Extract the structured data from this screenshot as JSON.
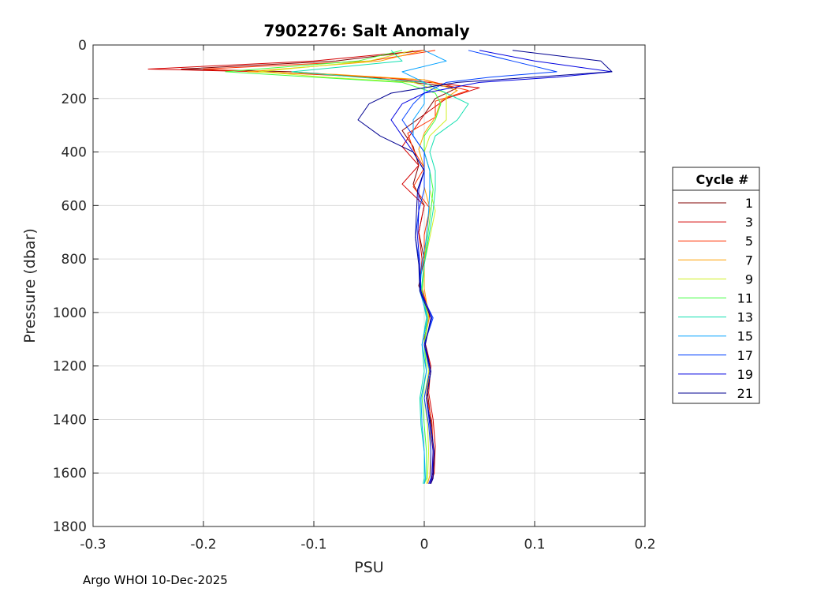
{
  "chart_data": {
    "type": "line",
    "title": "7902276: Salt Anomaly",
    "xlabel": "PSU",
    "ylabel": "Pressure (dbar)",
    "xlim": [
      -0.3,
      0.2
    ],
    "ylim": [
      0,
      1800
    ],
    "y_reversed": true,
    "grid": true,
    "xticks": [
      -0.3,
      -0.2,
      -0.1,
      0,
      0.1,
      0.2
    ],
    "xtick_labels": [
      "-0.3",
      "-0.2",
      "-0.1",
      "0",
      "0.1",
      "0.2"
    ],
    "yticks": [
      0,
      200,
      400,
      600,
      800,
      1000,
      1200,
      1400,
      1600,
      1800
    ],
    "ytick_labels": [
      "0",
      "200",
      "400",
      "600",
      "800",
      "1000",
      "1200",
      "1400",
      "1600",
      "1800"
    ],
    "legend": {
      "title": "Cycle #",
      "placement": "outside-right",
      "entries": [
        {
          "label": "1",
          "color": "#800000"
        },
        {
          "label": "3",
          "color": "#d40000"
        },
        {
          "label": "5",
          "color": "#ff3000"
        },
        {
          "label": "7",
          "color": "#ffa000"
        },
        {
          "label": "9",
          "color": "#d0f020"
        },
        {
          "label": "11",
          "color": "#40ff40"
        },
        {
          "label": "13",
          "color": "#10e0b0"
        },
        {
          "label": "15",
          "color": "#00a0ff"
        },
        {
          "label": "17",
          "color": "#0040ff"
        },
        {
          "label": "19",
          "color": "#0000e0"
        },
        {
          "label": "21",
          "color": "#000090"
        }
      ]
    },
    "series": [
      {
        "color": "#800000",
        "y": [
          20,
          60,
          90,
          100,
          120,
          160,
          200,
          260,
          320,
          380,
          450,
          520,
          600,
          700,
          800,
          900,
          1000,
          1100,
          1200,
          1300,
          1400,
          1500,
          1600,
          1640
        ],
        "x": [
          0.0,
          -0.08,
          -0.22,
          -0.12,
          -0.05,
          0.03,
          0.01,
          0.0,
          -0.02,
          -0.01,
          -0.005,
          -0.01,
          0.0,
          -0.005,
          0.0,
          -0.005,
          0.005,
          0.0,
          0.005,
          0.003,
          0.006,
          0.008,
          0.008,
          0.005
        ]
      },
      {
        "color": "#d40000",
        "y": [
          20,
          60,
          90,
          100,
          120,
          160,
          200,
          260,
          320,
          380,
          450,
          520,
          600,
          700,
          800,
          900,
          1000,
          1100,
          1200,
          1300,
          1400,
          1500,
          1600,
          1640
        ],
        "x": [
          0.0,
          -0.1,
          -0.25,
          -0.15,
          -0.04,
          0.05,
          0.02,
          0.0,
          -0.01,
          -0.02,
          -0.005,
          -0.02,
          0.0,
          -0.005,
          -0.002,
          -0.004,
          0.005,
          0.0,
          0.006,
          0.004,
          0.008,
          0.01,
          0.009,
          0.006
        ]
      },
      {
        "color": "#ff3000",
        "y": [
          20,
          60,
          90,
          110,
          130,
          170,
          210,
          270,
          330,
          390,
          460,
          530,
          610,
          710,
          810,
          910,
          1010,
          1110,
          1210,
          1310,
          1410,
          1510,
          1610,
          1640
        ],
        "x": [
          0.01,
          -0.05,
          -0.2,
          -0.1,
          0.0,
          0.04,
          0.01,
          0.01,
          -0.015,
          -0.01,
          0.0,
          -0.01,
          0.005,
          0.0,
          0.0,
          -0.002,
          0.005,
          0.0,
          0.005,
          0.002,
          0.007,
          0.008,
          0.007,
          0.004
        ]
      },
      {
        "color": "#ffa000",
        "y": [
          20,
          60,
          100,
          110,
          130,
          170,
          210,
          270,
          330,
          390,
          460,
          530,
          610,
          710,
          810,
          910,
          1010,
          1110,
          1210,
          1310,
          1410,
          1510,
          1610,
          1640
        ],
        "x": [
          0.0,
          -0.04,
          -0.16,
          -0.08,
          0.0,
          0.03,
          0.015,
          0.01,
          0.0,
          -0.005,
          0.0,
          0.0,
          0.005,
          0.002,
          0.0,
          0.0,
          0.004,
          0.0,
          0.005,
          0.002,
          0.005,
          0.006,
          0.005,
          0.003
        ]
      },
      {
        "color": "#d0f020",
        "y": [
          20,
          60,
          100,
          120,
          140,
          180,
          220,
          280,
          340,
          400,
          470,
          540,
          620,
          720,
          820,
          920,
          1020,
          1120,
          1220,
          1320,
          1420,
          1520,
          1620,
          1640
        ],
        "x": [
          -0.01,
          -0.05,
          -0.15,
          -0.09,
          -0.01,
          0.02,
          0.02,
          0.02,
          0.005,
          0.0,
          0.005,
          0.005,
          0.01,
          0.005,
          0.0,
          -0.002,
          0.004,
          0.0,
          0.004,
          0.0,
          0.003,
          0.004,
          0.003,
          0.002
        ]
      },
      {
        "color": "#40ff40",
        "y": [
          20,
          60,
          100,
          120,
          140,
          180,
          220,
          280,
          340,
          400,
          470,
          540,
          620,
          720,
          820,
          920,
          1020,
          1120,
          1220,
          1320,
          1420,
          1520,
          1620,
          1640
        ],
        "x": [
          -0.02,
          -0.06,
          -0.18,
          -0.1,
          -0.02,
          0.01,
          0.015,
          0.01,
          0.0,
          0.0,
          0.005,
          0.008,
          0.006,
          0.003,
          0.0,
          -0.002,
          0.003,
          0.0,
          0.002,
          -0.002,
          0.0,
          0.002,
          0.002,
          0.0
        ]
      },
      {
        "color": "#10e0b0",
        "y": [
          20,
          60,
          100,
          120,
          140,
          180,
          220,
          280,
          340,
          400,
          470,
          540,
          620,
          720,
          820,
          920,
          1020,
          1120,
          1220,
          1320,
          1420,
          1520,
          1620,
          1640
        ],
        "x": [
          -0.03,
          -0.02,
          -0.12,
          -0.06,
          0.0,
          0.02,
          0.04,
          0.03,
          0.01,
          0.005,
          0.01,
          0.01,
          0.008,
          0.004,
          0.0,
          -0.003,
          0.002,
          -0.002,
          0.0,
          -0.004,
          -0.003,
          0.0,
          0.0,
          -0.001
        ]
      },
      {
        "color": "#00a0ff",
        "y": [
          20,
          60,
          100,
          120,
          140,
          180,
          220,
          280,
          340,
          400,
          470,
          540,
          620,
          720,
          820,
          920,
          1020,
          1120,
          1220,
          1320,
          1420,
          1520,
          1620,
          1640
        ],
        "x": [
          0.0,
          0.02,
          -0.02,
          -0.01,
          0.0,
          0.0,
          0.0,
          -0.01,
          -0.01,
          0.0,
          0.005,
          0.005,
          0.004,
          0.002,
          -0.002,
          -0.004,
          0.003,
          -0.002,
          0.002,
          -0.003,
          -0.002,
          0.0,
          0.001,
          0.0
        ]
      },
      {
        "color": "#0040ff",
        "y": [
          20,
          60,
          100,
          120,
          140,
          180,
          220,
          280,
          340,
          400,
          470,
          540,
          620,
          720,
          820,
          920,
          1020,
          1120,
          1220,
          1320,
          1420,
          1520,
          1620,
          1640
        ],
        "x": [
          0.04,
          0.08,
          0.12,
          0.06,
          0.02,
          0.0,
          -0.01,
          -0.02,
          -0.01,
          0.0,
          0.0,
          0.0,
          -0.005,
          -0.008,
          -0.004,
          -0.004,
          0.008,
          0.0,
          0.005,
          0.0,
          0.004,
          0.006,
          0.006,
          0.004
        ]
      },
      {
        "color": "#0000e0",
        "y": [
          20,
          60,
          100,
          120,
          140,
          180,
          220,
          280,
          340,
          400,
          470,
          540,
          620,
          720,
          820,
          920,
          1020,
          1120,
          1220,
          1320,
          1420,
          1520,
          1620,
          1640
        ],
        "x": [
          0.05,
          0.1,
          0.17,
          0.12,
          0.05,
          0.0,
          -0.02,
          -0.03,
          -0.02,
          -0.01,
          0.0,
          -0.005,
          -0.005,
          -0.006,
          -0.004,
          -0.003,
          0.007,
          0.0,
          0.006,
          0.002,
          0.005,
          0.008,
          0.007,
          0.005
        ]
      },
      {
        "color": "#000090",
        "y": [
          20,
          60,
          100,
          120,
          140,
          180,
          220,
          280,
          340,
          400,
          470,
          540,
          620,
          720,
          820,
          920,
          1020,
          1120,
          1220,
          1320,
          1420,
          1520,
          1620,
          1640
        ],
        "x": [
          0.08,
          0.16,
          0.17,
          0.1,
          0.03,
          -0.03,
          -0.05,
          -0.06,
          -0.04,
          -0.01,
          0.0,
          -0.006,
          -0.007,
          -0.008,
          -0.005,
          -0.004,
          0.006,
          0.001,
          0.006,
          0.002,
          0.006,
          0.009,
          0.008,
          0.006
        ]
      }
    ]
  },
  "footer": "Argo WHOI 10-Dec-2025"
}
